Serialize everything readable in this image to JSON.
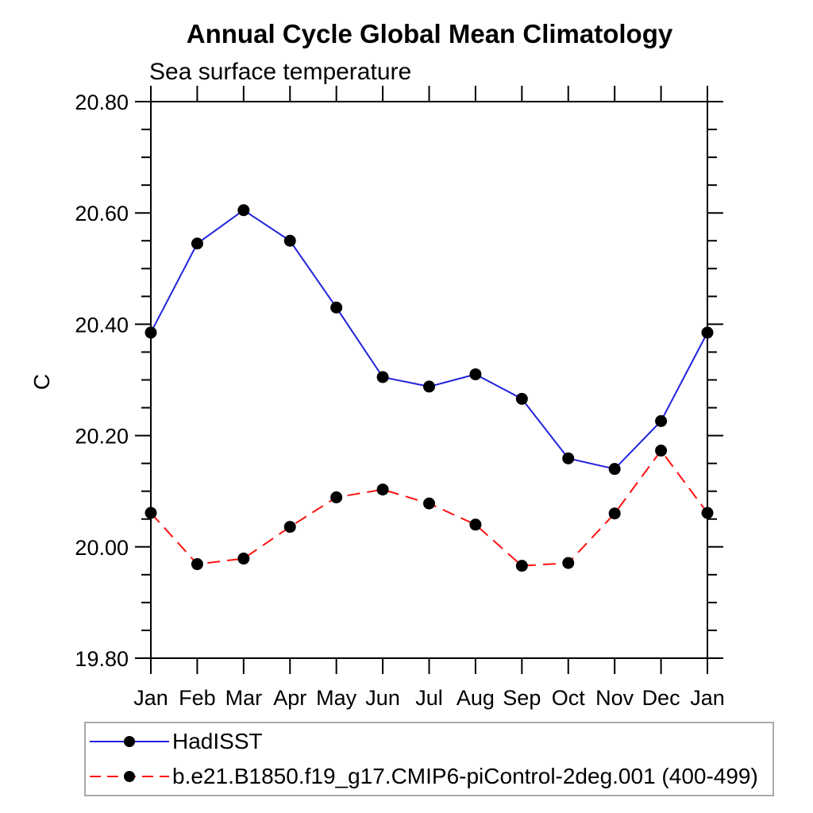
{
  "header": {
    "title": "Annual Cycle Global Mean Climatology",
    "subtitle": "Sea surface temperature"
  },
  "chart_data": {
    "type": "line",
    "title": "Annual Cycle Global Mean Climatology",
    "subtitle": "Sea surface temperature",
    "xlabel": "",
    "ylabel": "C",
    "categories": [
      "Jan",
      "Feb",
      "Mar",
      "Apr",
      "May",
      "Jun",
      "Jul",
      "Aug",
      "Sep",
      "Oct",
      "Nov",
      "Dec",
      "Jan"
    ],
    "series": [
      {
        "name": "HadISST",
        "line_style": "solid",
        "color": "#2222dd",
        "marker": "filled-circle",
        "marker_color": "#000000",
        "values": [
          20.385,
          20.545,
          20.605,
          20.55,
          20.43,
          20.305,
          20.288,
          20.31,
          20.266,
          20.159,
          20.14,
          20.226,
          20.385
        ]
      },
      {
        "name": "b.e21.B1850.f19_g17.CMIP6-piControl-2deg.001 (400-499)",
        "line_style": "dashed",
        "color": "#ff1111",
        "marker": "filled-circle",
        "marker_color": "#000000",
        "values": [
          20.061,
          19.969,
          19.979,
          20.036,
          20.089,
          20.103,
          20.078,
          20.04,
          19.966,
          19.971,
          20.06,
          20.173,
          20.061
        ]
      }
    ],
    "ylim": [
      19.8,
      20.8
    ],
    "ytick_major_step": 0.2,
    "ytick_minor_step": 0.05,
    "ytick_labels": [
      "19.80",
      "20.00",
      "20.20",
      "20.40",
      "20.60",
      "20.80"
    ],
    "grid": false,
    "frame": "box",
    "legend_position": "bottom-left-box",
    "axis_color": "#000000",
    "text_color": "#000000"
  }
}
